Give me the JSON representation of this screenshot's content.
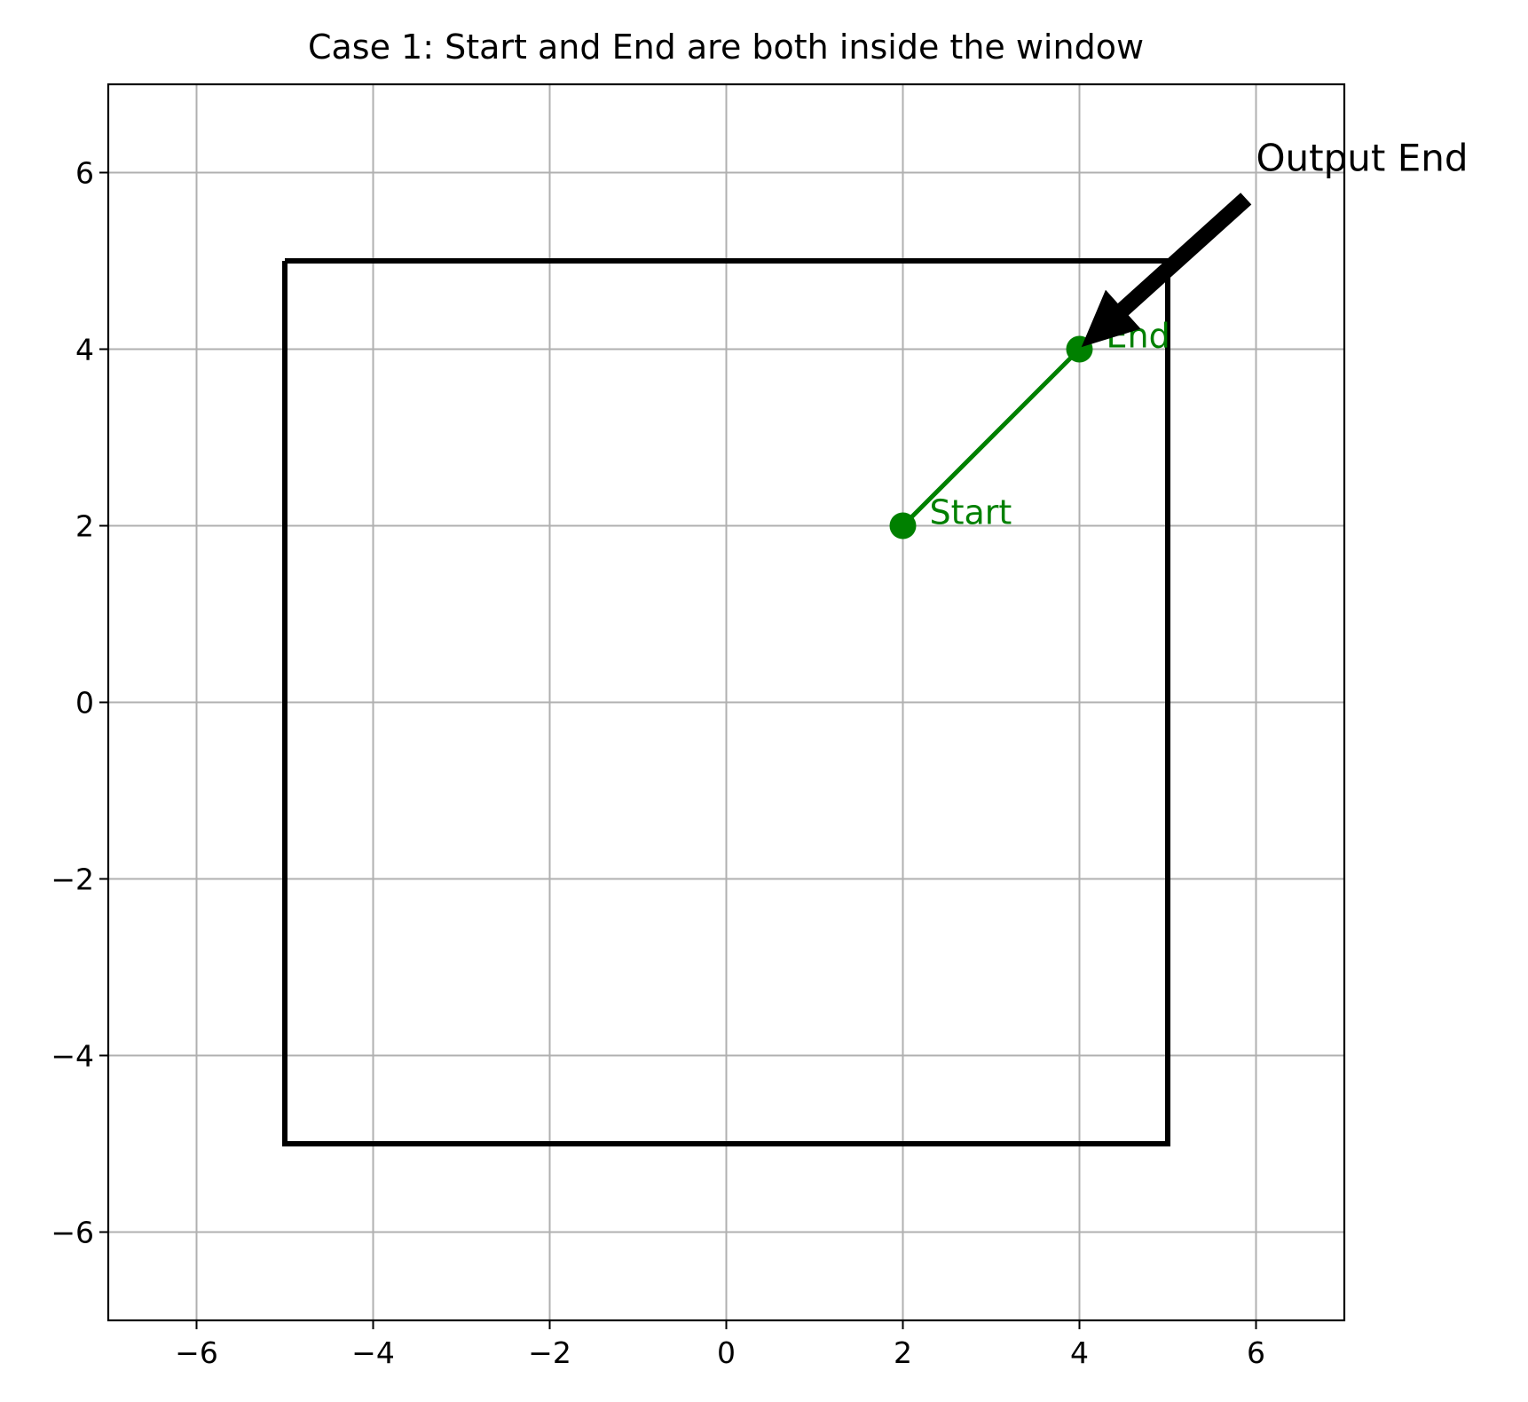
{
  "chart_data": {
    "type": "line",
    "title": "Case 1: Start and End are both inside the window",
    "xlabel": "",
    "ylabel": "",
    "xlim": [
      -7,
      7
    ],
    "ylim": [
      -7,
      7
    ],
    "xticks": [
      -6,
      -4,
      -2,
      0,
      2,
      4,
      6
    ],
    "yticks": [
      -6,
      -4,
      -2,
      0,
      2,
      4,
      6
    ],
    "x_tick_labels": [
      "−6",
      "−4",
      "−2",
      "0",
      "2",
      "4",
      "6"
    ],
    "y_tick_labels": [
      "−6",
      "−4",
      "−2",
      "0",
      "2",
      "4",
      "6"
    ],
    "grid": true,
    "window": {
      "x": [
        -5,
        5,
        5,
        -5,
        -5
      ],
      "y": [
        5,
        5,
        -5,
        -5,
        5
      ],
      "color": "#000000"
    },
    "segment": {
      "x": [
        2,
        4
      ],
      "y": [
        2,
        4
      ],
      "color": "#008000"
    },
    "points": [
      {
        "label": "Start",
        "x": 2,
        "y": 2,
        "color": "#008000"
      },
      {
        "label": "End",
        "x": 4,
        "y": 4,
        "color": "#008000"
      }
    ],
    "annotation": {
      "text": "Output End",
      "target": [
        4,
        4
      ],
      "text_pos": [
        6,
        6
      ],
      "color": "#000000"
    }
  }
}
